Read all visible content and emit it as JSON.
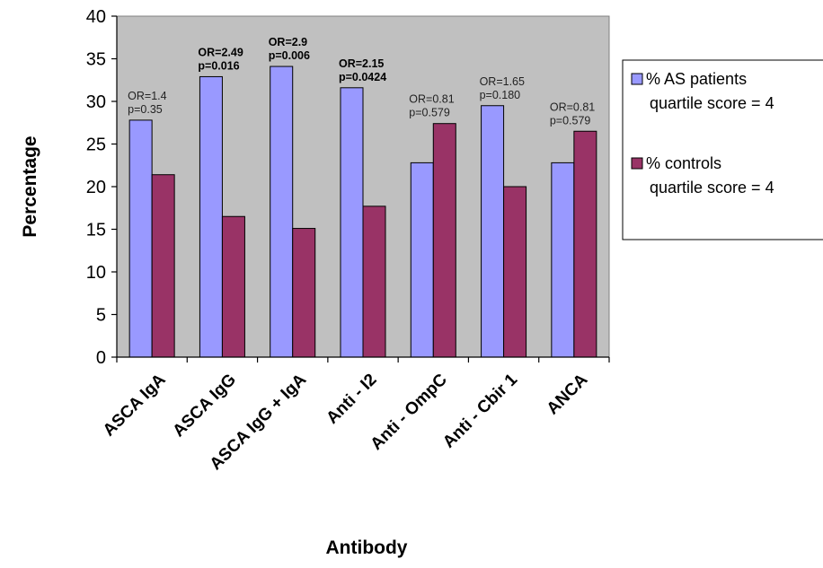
{
  "chart_data": {
    "type": "bar",
    "title": "",
    "xlabel": "Antibody",
    "ylabel": "Percentage",
    "ylim": [
      0,
      40
    ],
    "yticks": [
      0,
      5,
      10,
      15,
      20,
      25,
      30,
      35,
      40
    ],
    "grid": false,
    "legend_position": "right",
    "categories": [
      "ASCA IgA",
      "ASCA IgG",
      "ASCA IgG + IgA",
      "Anti - I2",
      "Anti - OmpC",
      "Anti - Cbir 1",
      "ANCA"
    ],
    "series": [
      {
        "name": "% AS patients quartile score = 4",
        "legend_lines": [
          "% AS  patients",
          "quartile score = 4"
        ],
        "color": "#9999ff",
        "values": [
          27.8,
          32.9,
          34.1,
          31.6,
          22.8,
          29.5,
          22.8
        ]
      },
      {
        "name": "% controls quartile score = 4",
        "legend_lines": [
          "% controls",
          "quartile score = 4"
        ],
        "color": "#993366",
        "values": [
          21.4,
          16.5,
          15.1,
          17.7,
          27.4,
          20.0,
          26.5
        ]
      }
    ],
    "annotations": [
      {
        "category": "ASCA IgA",
        "lines": [
          "OR=1.4",
          "p=0.35"
        ],
        "bold": false
      },
      {
        "category": "ASCA IgG",
        "lines": [
          "OR=2.49",
          "p=0.016"
        ],
        "bold": true
      },
      {
        "category": "ASCA IgG + IgA",
        "lines": [
          "OR=2.9",
          "p=0.006"
        ],
        "bold": true
      },
      {
        "category": "Anti - I2",
        "lines": [
          "OR=2.15",
          "p=0.0424"
        ],
        "bold": true
      },
      {
        "category": "Anti - OmpC",
        "lines": [
          "OR=0.81",
          "p=0.579"
        ],
        "bold": false
      },
      {
        "category": "Anti - Cbir 1",
        "lines": [
          "OR=1.65",
          "p=0.180"
        ],
        "bold": false
      },
      {
        "category": "ANCA",
        "lines": [
          "OR=0.81",
          "p=0.579"
        ],
        "bold": false
      }
    ],
    "plot_background": "#c0c0c0"
  }
}
